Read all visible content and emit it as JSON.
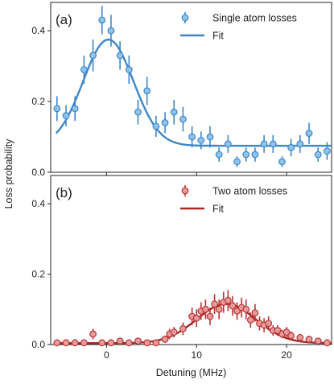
{
  "chart_data": [
    {
      "type": "scatter",
      "panel_label": "(a)",
      "xlabel": "",
      "ylabel": "Loss probability",
      "xlim": [
        -6.2,
        25
      ],
      "ylim": [
        0,
        0.48
      ],
      "xticks": [
        0,
        10,
        20
      ],
      "yticks": [
        0.0,
        0.2,
        0.4
      ],
      "ytick_labels": [
        "0.0",
        "0.2",
        "0.4"
      ],
      "legend": "top-right",
      "series": [
        {
          "name": "Single atom losses",
          "kind": "points-with-errorbars",
          "color": "#8fc3ea",
          "edge_color": "#3f86c8",
          "x": [
            -5.5,
            -4.5,
            -3.5,
            -2.5,
            -1.5,
            -0.5,
            0.5,
            1.5,
            2.5,
            3.5,
            4.5,
            5.5,
            6.5,
            7.5,
            8.5,
            9.5,
            10.5,
            11.5,
            12.5,
            13.5,
            14.5,
            15.5,
            16.5,
            17.5,
            18.5,
            19.5,
            20.5,
            21.5,
            22.5,
            23.5,
            24.5
          ],
          "y": [
            0.18,
            0.16,
            0.18,
            0.29,
            0.33,
            0.43,
            0.4,
            0.33,
            0.29,
            0.17,
            0.23,
            0.13,
            0.14,
            0.17,
            0.15,
            0.1,
            0.09,
            0.1,
            0.05,
            0.08,
            0.03,
            0.05,
            0.05,
            0.08,
            0.08,
            0.03,
            0.07,
            0.08,
            0.11,
            0.05,
            0.06
          ],
          "yerr": [
            0.035,
            0.03,
            0.035,
            0.04,
            0.045,
            0.04,
            0.045,
            0.04,
            0.04,
            0.035,
            0.04,
            0.03,
            0.03,
            0.035,
            0.035,
            0.03,
            0.025,
            0.03,
            0.02,
            0.025,
            0.015,
            0.02,
            0.02,
            0.025,
            0.025,
            0.015,
            0.025,
            0.025,
            0.03,
            0.02,
            0.025
          ]
        },
        {
          "name": "Fit",
          "kind": "gaussian-fit",
          "color": "#3f86c8",
          "baseline": 0.075,
          "amplitude": 0.3,
          "center": 0.2,
          "sigma": 2.8
        }
      ]
    },
    {
      "type": "scatter",
      "panel_label": "(b)",
      "xlabel": "Detuning (MHz)",
      "ylabel": "Loss probability",
      "xlim": [
        -6.2,
        25
      ],
      "ylim": [
        0,
        0.48
      ],
      "xticks": [
        0,
        10,
        20
      ],
      "xtick_labels": [
        "0",
        "10",
        "20"
      ],
      "yticks": [
        0.0,
        0.2,
        0.4
      ],
      "ytick_labels": [
        "0.0",
        "0.2",
        "0.4"
      ],
      "legend": "top-right",
      "series": [
        {
          "name": "Two atom losses",
          "kind": "points-with-errorbars",
          "color": "#e79a9a",
          "edge_color": "#b83434",
          "x": [
            -5.5,
            -4.5,
            -3.5,
            -2.5,
            -1.5,
            -0.5,
            0.5,
            1.5,
            2.5,
            3.5,
            4.5,
            5.5,
            6.5,
            7.0,
            7.5,
            8.5,
            9.5,
            10.0,
            10.5,
            11.0,
            11.5,
            12.0,
            12.5,
            13.0,
            13.5,
            14.0,
            14.5,
            15.0,
            15.5,
            16.0,
            16.5,
            17.0,
            17.5,
            18.0,
            18.5,
            19.0,
            19.5,
            20.0,
            20.5,
            21.5,
            22.5,
            23.5,
            24.5
          ],
          "y": [
            0.005,
            0.005,
            0.005,
            0.005,
            0.03,
            0.005,
            0.005,
            0.01,
            0.005,
            0.01,
            0.005,
            0.005,
            0.015,
            0.03,
            0.035,
            0.045,
            0.08,
            0.075,
            0.095,
            0.1,
            0.08,
            0.115,
            0.1,
            0.12,
            0.125,
            0.11,
            0.095,
            0.105,
            0.1,
            0.07,
            0.09,
            0.06,
            0.055,
            0.06,
            0.04,
            0.04,
            0.03,
            0.035,
            0.025,
            0.02,
            0.015,
            0.01,
            0.005
          ],
          "yerr": [
            0.006,
            0.006,
            0.006,
            0.006,
            0.015,
            0.006,
            0.006,
            0.008,
            0.006,
            0.008,
            0.006,
            0.006,
            0.01,
            0.015,
            0.015,
            0.018,
            0.025,
            0.025,
            0.025,
            0.028,
            0.025,
            0.028,
            0.028,
            0.03,
            0.03,
            0.028,
            0.025,
            0.028,
            0.028,
            0.022,
            0.025,
            0.02,
            0.02,
            0.02,
            0.015,
            0.015,
            0.012,
            0.015,
            0.012,
            0.01,
            0.008,
            0.008,
            0.006
          ]
        },
        {
          "name": "Fit",
          "kind": "gaussian-fit",
          "color": "#a82828",
          "baseline": 0.004,
          "amplitude": 0.111,
          "center": 13.3,
          "sigma": 3.3
        }
      ]
    }
  ]
}
